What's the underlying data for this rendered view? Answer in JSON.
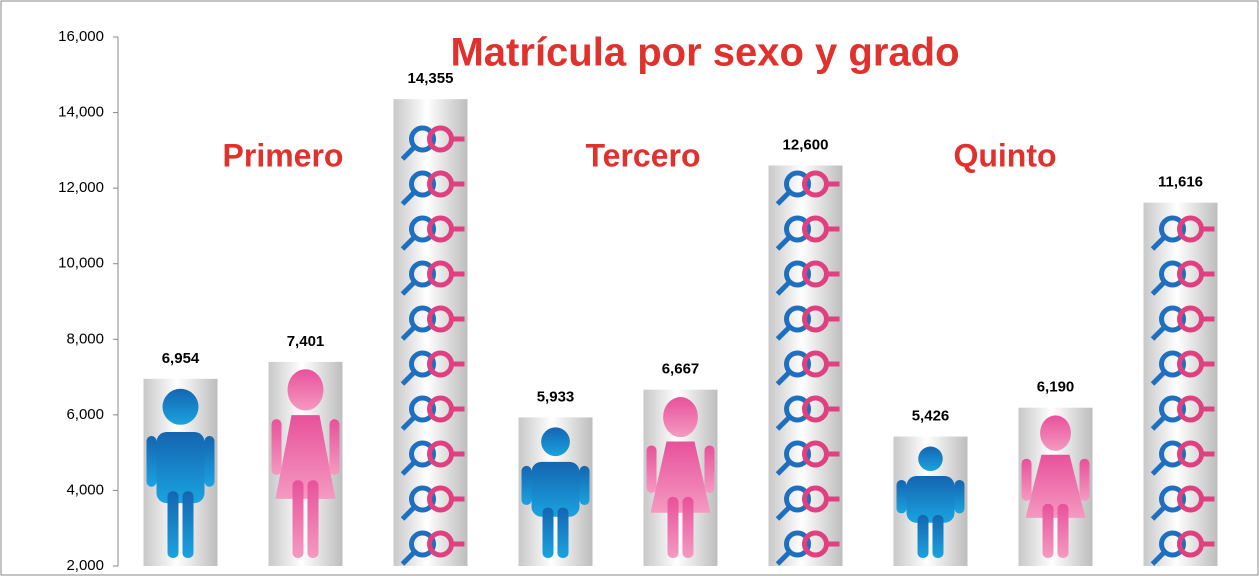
{
  "chart_data": {
    "type": "bar",
    "title": "Matrícula  por sexo y grado",
    "annotations": [
      "Primero",
      "Tercero",
      "Quinto"
    ],
    "categories": [
      null,
      null,
      null,
      null,
      null,
      null,
      null,
      null,
      null
    ],
    "values": [
      6954,
      7401,
      14355,
      5933,
      6667,
      12600,
      5426,
      6190,
      11616
    ],
    "value_labels": [
      "6,954",
      "7,401",
      "14,355",
      "5,933",
      "6,667",
      "12,600",
      "5,426",
      "6,190",
      "11,616"
    ],
    "ylim": [
      2000,
      16000
    ],
    "yticks": [
      {
        "value": 2000,
        "label": "2,000"
      },
      {
        "value": 4000,
        "label": "4,000"
      },
      {
        "value": 6000,
        "label": "6,000"
      },
      {
        "value": 8000,
        "label": "8,000"
      },
      {
        "value": 10000,
        "label": "10,000"
      },
      {
        "value": 12000,
        "label": "12,000"
      },
      {
        "value": 14000,
        "label": "14,000"
      },
      {
        "value": 16000,
        "label": "16,000"
      }
    ],
    "grid": false
  }
}
